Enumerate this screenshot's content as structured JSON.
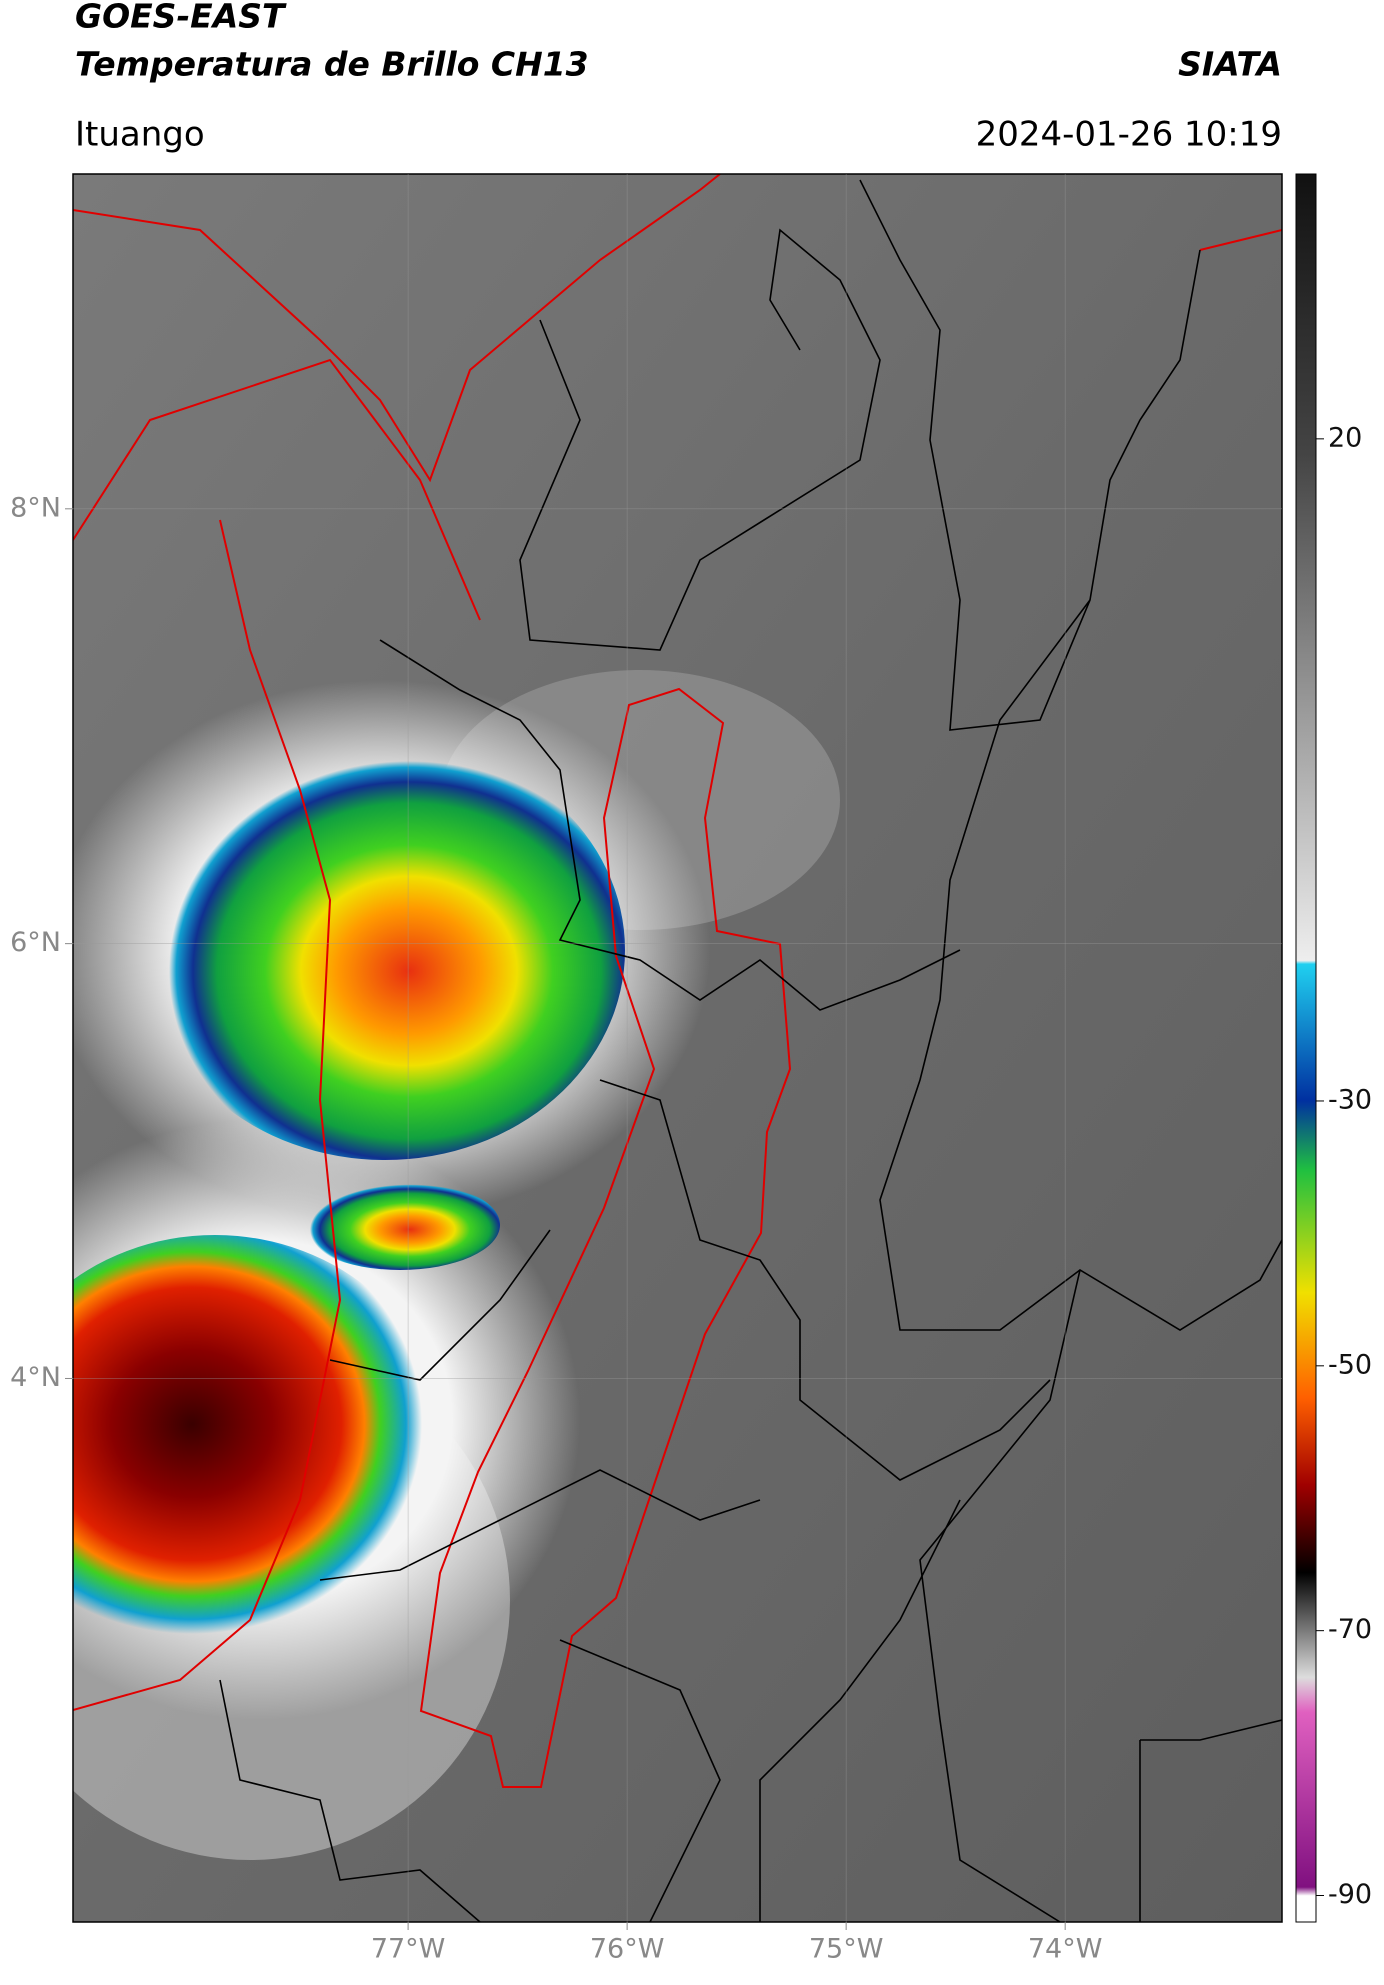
{
  "chart_data": {
    "type": "map",
    "title": "GOES-EAST",
    "subtitle": "Temperatura de Brillo CH13",
    "source": "SIATA",
    "location": "Ituango",
    "datetime": "2024-01-26 10:19",
    "xlim": [
      -78.53,
      -73.01
    ],
    "ylim": [
      1.5,
      9.54
    ],
    "xticks": [
      {
        "value": -77,
        "label": "77°W"
      },
      {
        "value": -76,
        "label": "76°W"
      },
      {
        "value": -75,
        "label": "75°W"
      },
      {
        "value": -74,
        "label": "74°W"
      }
    ],
    "yticks": [
      {
        "value": 8,
        "label": "8°N"
      },
      {
        "value": 6,
        "label": "6°N"
      },
      {
        "value": 4,
        "label": "4°N"
      }
    ],
    "grid": true,
    "colorbar": {
      "clim": [
        -92,
        40
      ],
      "ticks": [
        20,
        -30,
        -50,
        -70,
        -90
      ]
    }
  }
}
